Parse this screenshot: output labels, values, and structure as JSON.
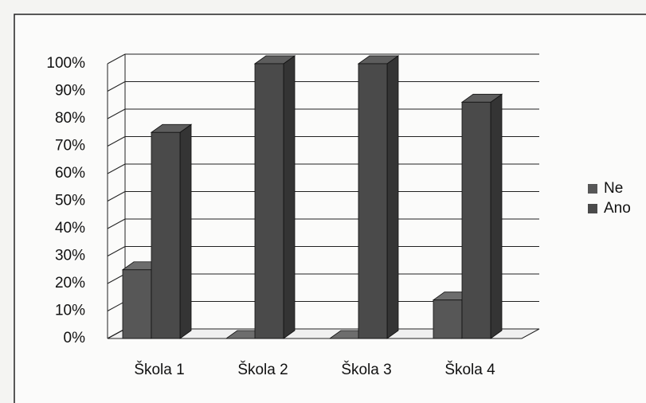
{
  "chart_data": {
    "type": "bar3d",
    "categories": [
      "Škola 1",
      "Škola 2",
      "Škola 3",
      "Škola 4"
    ],
    "series": [
      {
        "name": "Ne",
        "color": "#575757",
        "values": [
          25,
          0,
          0,
          14
        ]
      },
      {
        "name": "Ano",
        "color": "#4a4a4a",
        "values": [
          75,
          100,
          100,
          86
        ]
      }
    ],
    "ylim": [
      0,
      100
    ],
    "yticks": [
      {
        "value": 0,
        "label": "0%"
      },
      {
        "value": 10,
        "label": "10%"
      },
      {
        "value": 20,
        "label": "20%"
      },
      {
        "value": 30,
        "label": "30%"
      },
      {
        "value": 40,
        "label": "40%"
      },
      {
        "value": 50,
        "label": "50%"
      },
      {
        "value": 60,
        "label": "60%"
      },
      {
        "value": 70,
        "label": "70%"
      },
      {
        "value": 80,
        "label": "80%"
      },
      {
        "value": 90,
        "label": "90%"
      },
      {
        "value": 100,
        "label": "100%"
      }
    ],
    "grid": true,
    "legend": "right"
  }
}
